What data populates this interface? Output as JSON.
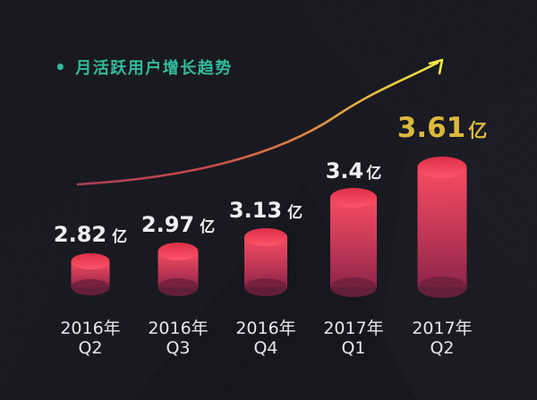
{
  "header": {
    "bullet": "•",
    "title": "月活跃用户增长趋势"
  },
  "chart_data": {
    "type": "bar",
    "style": "3d-cylinder-infographic",
    "title": "月活跃用户增长趋势",
    "xlabel": "",
    "ylabel": "",
    "unit": "亿",
    "categories": [
      [
        "2016年",
        "Q2"
      ],
      [
        "2016年",
        "Q3"
      ],
      [
        "2016年",
        "Q4"
      ],
      [
        "2017年",
        "Q1"
      ],
      [
        "2017年",
        "Q2"
      ]
    ],
    "values": [
      2.82,
      2.97,
      3.13,
      3.4,
      3.61
    ],
    "value_labels": [
      "2.82",
      "2.97",
      "3.13",
      "3.4",
      "3.61"
    ],
    "highlight_index": 4,
    "grid": false,
    "legend": false,
    "annotations": [
      {
        "type": "trend_arrow",
        "description": "upward curved arrow from first bar toward top-right"
      }
    ],
    "colors": {
      "background": "#15151d",
      "title": "#32bb9c",
      "value_label": "#f2f3f5",
      "value_label_highlight": "#ddb93a",
      "category_label": "#e8e9ed",
      "bar_top": "#df2c44",
      "bar_top_edge": "#ff5268",
      "bar_body_top": "#f8495f",
      "bar_body_mid": "#c23453",
      "bar_body_bottom": "#8c2147",
      "bar_bottom_cap": "#6f1c3a",
      "trend_gradient": [
        "#a93a57",
        "#c84747",
        "#e0823b",
        "#ecc93c",
        "#f1ee3f"
      ],
      "trend_end": "#f1ee3f"
    }
  }
}
